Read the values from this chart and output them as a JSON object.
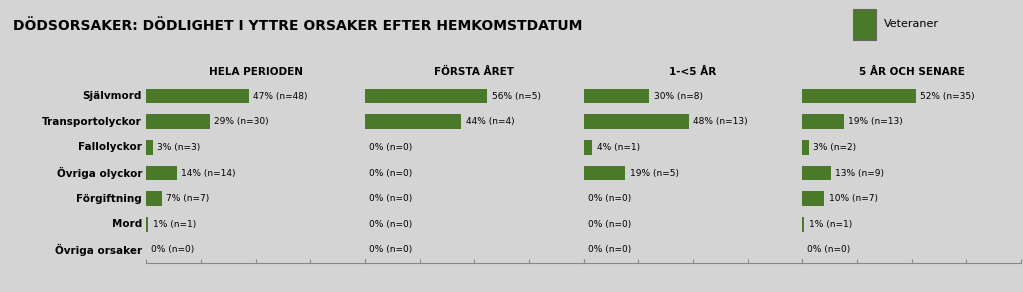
{
  "title": "DÖDSORSAKER: DÖDLIGHET I YTTRE ORSAKER EFTER HEMKOMSTDATUM",
  "legend_label": "Veteraner",
  "bar_color": "#4a7a29",
  "bg_color": "#d4d4d4",
  "row_bg_odd": "#f0f0f0",
  "row_bg_even": "#e4e4e4",
  "header_bg": "#d4d4d4",
  "categories": [
    "Självmord",
    "Transportolyckor",
    "Fallolyckor",
    "Övriga olyckor",
    "Förgiftning",
    "Mord",
    "Övriga orsaker"
  ],
  "periods": [
    "HELA PERIODEN",
    "FÖRSTA ÅRET",
    "1-<5 ÅR",
    "5 ÅR OCH SENARE"
  ],
  "values": [
    [
      47,
      56,
      30,
      52
    ],
    [
      29,
      44,
      48,
      19
    ],
    [
      3,
      0,
      4,
      3
    ],
    [
      14,
      0,
      19,
      13
    ],
    [
      7,
      0,
      0,
      10
    ],
    [
      1,
      0,
      0,
      1
    ],
    [
      0,
      0,
      0,
      0
    ]
  ],
  "labels": [
    [
      "47% (n=48)",
      "56% (n=5)",
      "30% (n=8)",
      "52% (n=35)"
    ],
    [
      "29% (n=30)",
      "44% (n=4)",
      "48% (n=13)",
      "19% (n=13)"
    ],
    [
      "3% (n=3)",
      "0% (n=0)",
      "4% (n=1)",
      "3% (n=2)"
    ],
    [
      "14% (n=14)",
      "0% (n=0)",
      "19% (n=5)",
      "13% (n=9)"
    ],
    [
      "7% (n=7)",
      "0% (n=0)",
      "0% (n=0)",
      "10% (n=7)"
    ],
    [
      "1% (n=1)",
      "0% (n=0)",
      "0% (n=0)",
      "1% (n=1)"
    ],
    [
      "0% (n=0)",
      "0% (n=0)",
      "0% (n=0)",
      "0% (n=0)"
    ]
  ],
  "figsize": [
    10.23,
    2.92
  ],
  "dpi": 100
}
